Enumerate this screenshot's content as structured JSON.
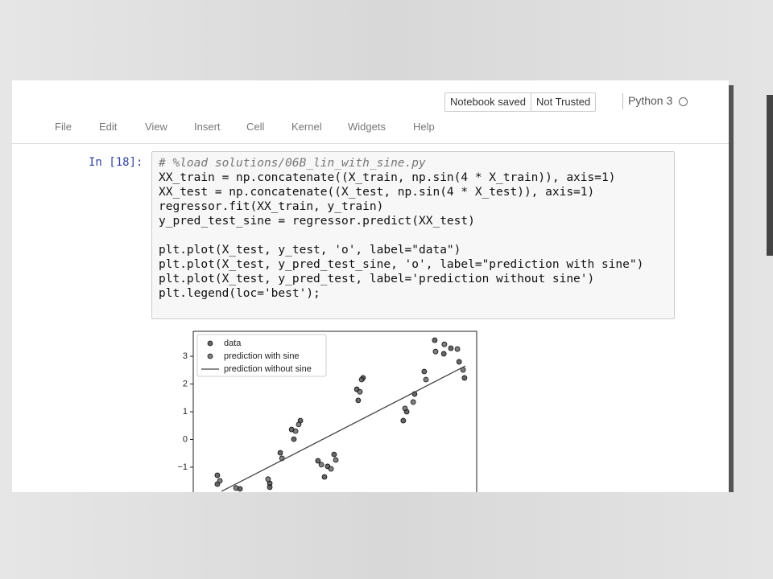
{
  "header": {
    "buttons": [
      "Notebook saved",
      "Not Trusted"
    ],
    "kernel": "Python 3"
  },
  "menu": [
    "File",
    "Edit",
    "View",
    "Insert",
    "Cell",
    "Kernel",
    "Widgets",
    "Help"
  ],
  "cell": {
    "prompt": "In [18]:",
    "code_blocks": [
      [
        "# %load solutions/06B_lin_with_sine.py",
        "XX_train = np.concatenate((X_train, np.sin(4 * X_train)), axis=1)",
        "XX_test = np.concatenate((X_test, np.sin(4 * X_test)), axis=1)",
        "regressor.fit(XX_train, y_train)",
        "y_pred_test_sine = regressor.predict(XX_test)"
      ],
      [
        "plt.plot(X_test, y_test, 'o', label=\"data\")",
        "plt.plot(X_test, y_pred_test_sine, 'o', label=\"prediction with sine\")",
        "plt.plot(X_test, y_pred_test, label='prediction without sine')",
        "plt.legend(loc='best');"
      ]
    ]
  },
  "chart_data": {
    "type": "scatter",
    "legend": "upper left",
    "xlim": [
      0,
      10
    ],
    "ylim": [
      -1.9,
      3.9
    ],
    "yticks": [
      {
        "value": -1,
        "label": "−1"
      },
      0,
      1,
      2,
      3
    ],
    "series": [
      {
        "name": "data",
        "mode": "markers",
        "color": "#333333",
        "x": [
          0.85,
          0.85,
          1.65,
          2.7,
          2.7,
          3.07,
          3.47,
          3.55,
          3.78,
          4.4,
          4.63,
          4.74,
          4.97,
          5.77,
          5.99,
          5.82,
          7.41,
          7.53,
          7.81,
          8.15,
          8.52,
          8.84,
          9.09,
          9.38,
          9.57
        ],
        "values": [
          -1.29,
          -1.61,
          -1.78,
          -1.58,
          -1.72,
          -0.48,
          0.36,
          0.01,
          0.68,
          -0.77,
          -1.35,
          -0.97,
          -0.54,
          1.81,
          2.22,
          1.41,
          0.68,
          1.0,
          1.64,
          2.45,
          3.58,
          3.09,
          3.29,
          2.8,
          2.22
        ]
      },
      {
        "name": "prediction with sine",
        "mode": "markers",
        "color": "#555555",
        "x": [
          0.94,
          1.51,
          2.64,
          3.13,
          3.61,
          3.72,
          4.52,
          4.86,
          5.03,
          5.88,
          5.94,
          7.47,
          7.76,
          8.21,
          8.55,
          8.86,
          9.32,
          9.52
        ],
        "values": [
          -1.49,
          -1.75,
          -1.43,
          -0.68,
          0.3,
          0.54,
          -0.91,
          -1.06,
          -0.74,
          1.72,
          2.16,
          1.12,
          1.35,
          2.16,
          3.17,
          3.43,
          3.26,
          2.51
        ]
      },
      {
        "name": "prediction without sine",
        "mode": "line",
        "color": "#444444",
        "x": [
          1.0,
          9.6
        ],
        "values": [
          -1.87,
          2.65
        ]
      }
    ]
  }
}
